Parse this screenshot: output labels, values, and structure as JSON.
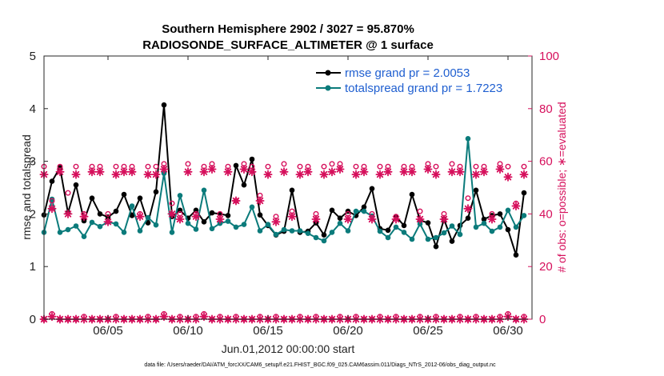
{
  "chart_data": {
    "type": "line",
    "title": "Southern Hemisphere 2902 / 3027 = 95.870%",
    "subtitle": "RADIOSONDE_SURFACE_ALTIMETER @ 1 surface",
    "xlabel": "Jun.01,2012 00:00:00 start",
    "ylabel": "rmse and totalspread",
    "y2label": "# of obs: o=possible; ∗=evaluated",
    "xlim": [
      1.0,
      31.5
    ],
    "ylim": [
      0,
      5
    ],
    "y2lim": [
      0,
      100
    ],
    "xticks": [
      5,
      10,
      15,
      20,
      25,
      30
    ],
    "xtick_labels": [
      "06/05",
      "06/10",
      "06/15",
      "06/20",
      "06/25",
      "06/30"
    ],
    "yticks": [
      0,
      1,
      2,
      3,
      4,
      5
    ],
    "y2ticks": [
      0,
      20,
      40,
      60,
      80,
      100
    ],
    "legend_position": "top-right",
    "x": [
      1.0,
      1.5,
      2.0,
      2.5,
      3.0,
      3.5,
      4.0,
      4.5,
      5.0,
      5.5,
      6.0,
      6.5,
      7.0,
      7.5,
      8.0,
      8.5,
      9.0,
      9.5,
      10.0,
      10.5,
      11.0,
      11.5,
      12.0,
      12.5,
      13.0,
      13.5,
      14.0,
      14.5,
      15.0,
      15.5,
      16.0,
      16.5,
      17.0,
      17.5,
      18.0,
      18.5,
      19.0,
      19.5,
      20.0,
      20.5,
      21.0,
      21.5,
      22.0,
      22.5,
      23.0,
      23.5,
      24.0,
      24.5,
      25.0,
      25.5,
      26.0,
      26.5,
      27.0,
      27.5,
      28.0,
      28.5,
      29.0,
      29.5,
      30.0,
      30.5,
      31.0
    ],
    "series": [
      {
        "name": "rmse grand pr = 2.0053",
        "label": "rmse grand pr = 2.0053",
        "axis": "left",
        "color": "#000000",
        "values": [
          1.98,
          2.62,
          2.88,
          2.02,
          2.55,
          1.87,
          2.3,
          2.0,
          1.94,
          2.05,
          2.37,
          1.97,
          2.3,
          1.83,
          2.42,
          4.07,
          1.95,
          2.07,
          1.92,
          2.07,
          1.85,
          2.02,
          2.0,
          1.97,
          2.92,
          2.55,
          3.04,
          1.98,
          1.78,
          1.6,
          1.67,
          2.45,
          1.65,
          1.67,
          1.83,
          1.6,
          2.07,
          1.92,
          2.05,
          1.97,
          2.13,
          2.48,
          1.72,
          1.69,
          1.95,
          1.78,
          2.37,
          1.88,
          1.83,
          1.38,
          1.9,
          1.48,
          1.78,
          1.92,
          2.45,
          1.9,
          1.97,
          2.0,
          1.7,
          1.22,
          2.4
        ]
      },
      {
        "name": "totalspread grand pr = 1.7223",
        "label": "totalspread grand pr = 1.7223",
        "axis": "left",
        "color": "#0b7b7b",
        "values": [
          1.65,
          2.28,
          1.65,
          1.7,
          1.77,
          1.57,
          1.84,
          1.76,
          1.85,
          1.81,
          1.65,
          2.15,
          1.68,
          1.93,
          1.79,
          2.77,
          1.65,
          2.35,
          1.82,
          1.71,
          2.45,
          1.72,
          1.82,
          1.86,
          1.75,
          1.8,
          2.13,
          1.68,
          1.8,
          1.61,
          1.7,
          1.68,
          1.68,
          1.63,
          1.55,
          1.49,
          1.65,
          1.82,
          1.68,
          2.05,
          2.05,
          1.96,
          1.67,
          1.55,
          1.75,
          1.65,
          1.52,
          1.81,
          1.52,
          1.55,
          1.64,
          1.77,
          1.61,
          3.43,
          1.75,
          1.82,
          1.67,
          1.75,
          2.07,
          1.75,
          1.97
        ]
      }
    ],
    "possible_obs": {
      "name": "# obs possible",
      "axis": "right",
      "marker": "o",
      "color": "#d6105c",
      "values": [
        58,
        45,
        58,
        48,
        58,
        40,
        58,
        58,
        40,
        58,
        58,
        58,
        40,
        58,
        58,
        59,
        44,
        40,
        59,
        40,
        58,
        59,
        40,
        58,
        45,
        59,
        58,
        47,
        58,
        39,
        59,
        41,
        58,
        58,
        40,
        58,
        59,
        59,
        40,
        58,
        58,
        40,
        58,
        58,
        39,
        58,
        58,
        41,
        59,
        58,
        40,
        59,
        58,
        46,
        58,
        58,
        40,
        59,
        58,
        44,
        58
      ]
    },
    "evaluated_obs": {
      "name": "# obs evaluated",
      "axis": "right",
      "marker": "*",
      "color": "#d6105c",
      "values": [
        55,
        42,
        56,
        40,
        55,
        39,
        56,
        56,
        37,
        55,
        56,
        56,
        39,
        55,
        55,
        57,
        40,
        38,
        56,
        39,
        56,
        57,
        38,
        56,
        45,
        57,
        56,
        45,
        55,
        37,
        56,
        39,
        55,
        56,
        38,
        55,
        56,
        57,
        38,
        55,
        56,
        38,
        55,
        56,
        38,
        56,
        56,
        38,
        57,
        55,
        38,
        56,
        56,
        42,
        55,
        56,
        38,
        57,
        54,
        43,
        55
      ]
    },
    "low_counts": {
      "name": "low counts",
      "axis": "right",
      "color": "#d6105c",
      "possible": [
        0,
        2,
        0,
        0,
        0,
        1,
        0,
        0,
        0,
        1,
        0,
        0,
        0,
        1,
        0,
        2,
        0,
        1,
        0,
        1,
        2,
        0,
        1,
        0,
        1,
        0,
        0,
        1,
        0,
        1,
        0,
        0,
        1,
        0,
        1,
        0,
        0,
        1,
        0,
        1,
        0,
        0,
        1,
        0,
        1,
        0,
        0,
        1,
        0,
        1,
        0,
        0,
        1,
        0,
        1,
        0,
        0,
        1,
        2,
        0,
        1
      ],
      "evaluated": [
        0,
        1,
        0,
        0,
        0,
        0,
        0,
        0,
        0,
        0,
        0,
        0,
        0,
        0,
        0,
        1,
        0,
        0,
        0,
        0,
        1,
        0,
        0,
        0,
        0,
        0,
        0,
        0,
        0,
        0,
        0,
        0,
        0,
        0,
        0,
        0,
        0,
        0,
        0,
        0,
        0,
        0,
        0,
        0,
        0,
        0,
        0,
        0,
        0,
        0,
        0,
        0,
        0,
        0,
        0,
        0,
        0,
        0,
        1,
        0,
        0
      ]
    },
    "footer": "data file: /Users/raeder/DAI/ATM_forcXX/CAM6_setup/f.e21.FHIST_BGC.f09_025.CAM6assim.011/Diags_NTrS_2012-06/obs_diag_output.nc"
  }
}
